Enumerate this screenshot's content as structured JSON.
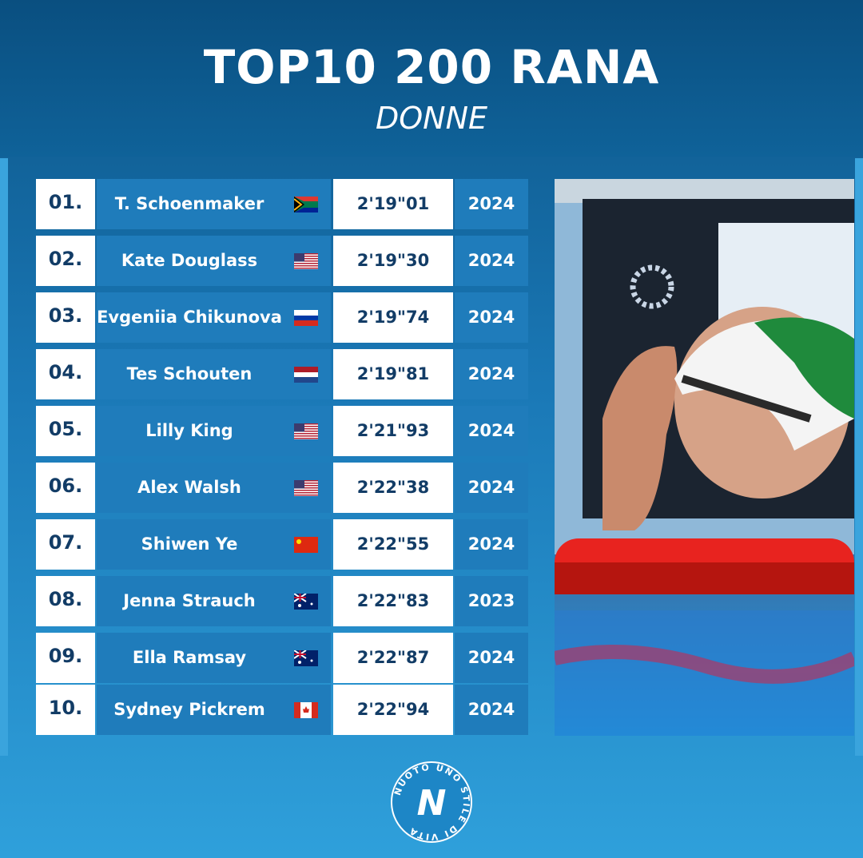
{
  "header": {
    "title": "TOP10 200 RANA",
    "subtitle": "DONNE"
  },
  "table": {
    "rows": [
      [
        "01.",
        "T. Schoenmaker",
        "2'19\"01",
        "2024"
      ],
      [
        "02.",
        "Kate Douglass",
        "2'19\"30",
        "2024"
      ],
      [
        "03.",
        "Evgeniia Chikunova",
        "2'19\"74",
        "2024"
      ],
      [
        "04.",
        "Tes Schouten",
        "2'19\"81",
        "2024"
      ],
      [
        "05.",
        "Lilly King",
        "2'21\"93",
        "2024"
      ],
      [
        "06.",
        "Alex Walsh",
        "2'22\"38",
        "2024"
      ],
      [
        "07.",
        "Shiwen Ye",
        "2'22\"55",
        "2024"
      ],
      [
        "08.",
        "Jenna Strauch",
        "2'22\"83",
        "2023"
      ],
      [
        "09.",
        "Ella Ramsay",
        "2'22\"87",
        "2024"
      ],
      [
        "10.",
        "Sydney Pickrem",
        "2'22\"94",
        "2024"
      ]
    ]
  },
  "logo": {
    "letter": "N",
    "ring": "NUOTO UNO STILE DI VITA"
  }
}
